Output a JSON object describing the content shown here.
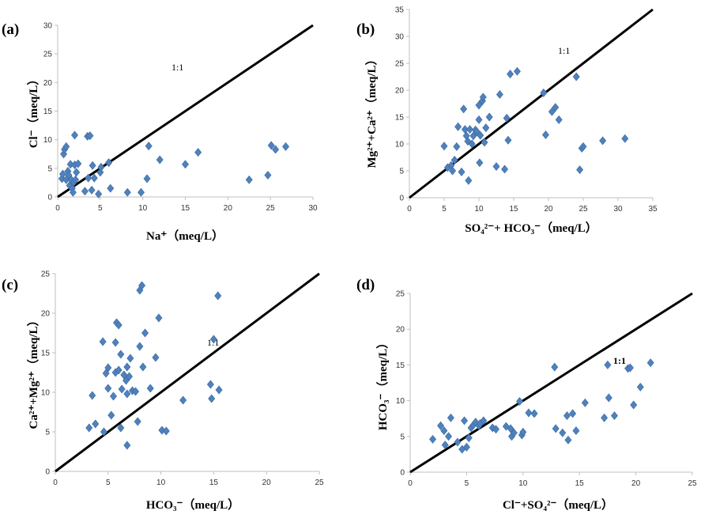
{
  "chart_data": [
    {
      "panel": "(a)",
      "type": "scatter",
      "xlabel": "Na⁺（meq/L）",
      "ylabel": "Cl⁻（meq/L）",
      "xlim": [
        0,
        30
      ],
      "ylim": [
        0,
        30
      ],
      "xticks": [
        0,
        5,
        10,
        15,
        20,
        25,
        30
      ],
      "yticks": [
        0,
        5,
        10,
        15,
        20,
        25,
        30
      ],
      "ratio_line_label": "1:1",
      "marker_color": "#4f81bd",
      "points": [
        [
          0.5,
          3.2
        ],
        [
          0.6,
          4
        ],
        [
          0.7,
          7.5
        ],
        [
          0.8,
          8.3
        ],
        [
          1,
          8.8
        ],
        [
          1,
          3
        ],
        [
          1.2,
          4.5
        ],
        [
          1.3,
          3.8
        ],
        [
          1.4,
          2
        ],
        [
          1.5,
          5.7
        ],
        [
          1.6,
          3
        ],
        [
          1.7,
          1.5
        ],
        [
          1.8,
          0.8
        ],
        [
          1.9,
          2.6
        ],
        [
          2,
          10.8
        ],
        [
          2,
          5.6
        ],
        [
          2.1,
          3
        ],
        [
          2.2,
          4.3
        ],
        [
          2.4,
          5.8
        ],
        [
          3.5,
          10.6
        ],
        [
          3.8,
          10.7
        ],
        [
          3.2,
          1
        ],
        [
          3.6,
          3.3
        ],
        [
          4,
          1.2
        ],
        [
          4.1,
          5.5
        ],
        [
          4.3,
          3.3
        ],
        [
          4.8,
          0.5
        ],
        [
          5,
          4.3
        ],
        [
          5.1,
          5.2
        ],
        [
          6,
          6
        ],
        [
          6.2,
          1.5
        ],
        [
          8.2,
          0.8
        ],
        [
          9.8,
          0.8
        ],
        [
          10.5,
          3.2
        ],
        [
          10.7,
          8.9
        ],
        [
          12,
          6.5
        ],
        [
          15,
          5.7
        ],
        [
          16.5,
          7.8
        ],
        [
          22.5,
          3
        ],
        [
          24.7,
          3.8
        ],
        [
          25.1,
          9
        ],
        [
          25.6,
          8.3
        ],
        [
          26.8,
          8.8
        ]
      ]
    },
    {
      "panel": "(b)",
      "type": "scatter",
      "xlabel": "SO₄²⁻+ HCO₃⁻（meq/L）",
      "ylabel": "Mg²⁺+Ca²⁺（meq/L）",
      "xlim": [
        0,
        35
      ],
      "ylim": [
        0,
        35
      ],
      "xticks": [
        0,
        5,
        10,
        15,
        20,
        25,
        30,
        35
      ],
      "yticks": [
        0,
        5,
        10,
        15,
        20,
        25,
        30,
        35
      ],
      "ratio_line_label": "1:1",
      "marker_color": "#4f81bd",
      "points": [
        [
          5,
          9.6
        ],
        [
          5.5,
          5.6
        ],
        [
          6,
          6
        ],
        [
          6.2,
          5
        ],
        [
          6.5,
          7
        ],
        [
          6.8,
          9.5
        ],
        [
          7,
          13.2
        ],
        [
          7.5,
          4.8
        ],
        [
          7.8,
          16.5
        ],
        [
          8,
          12.7
        ],
        [
          8.2,
          11.5
        ],
        [
          8.4,
          10.5
        ],
        [
          8.5,
          3.2
        ],
        [
          8.7,
          12.7
        ],
        [
          9,
          10
        ],
        [
          9.2,
          11.5
        ],
        [
          9.5,
          12.6
        ],
        [
          9.7,
          12.3
        ],
        [
          10,
          17.2
        ],
        [
          10,
          14.5
        ],
        [
          10.1,
          6.5
        ],
        [
          10.2,
          11.6
        ],
        [
          10.5,
          18
        ],
        [
          10.6,
          18.7
        ],
        [
          10.8,
          10.3
        ],
        [
          11,
          13
        ],
        [
          11.5,
          15
        ],
        [
          12.5,
          5.8
        ],
        [
          13,
          19.2
        ],
        [
          13.7,
          5.3
        ],
        [
          14,
          14.8
        ],
        [
          14.2,
          10.7
        ],
        [
          14.5,
          23
        ],
        [
          15.5,
          23.5
        ],
        [
          19.3,
          19.5
        ],
        [
          19.6,
          11.7
        ],
        [
          20.5,
          16
        ],
        [
          21,
          16.8
        ],
        [
          21.5,
          14.5
        ],
        [
          24,
          22.5
        ],
        [
          24.5,
          5.2
        ],
        [
          24.8,
          9.2
        ],
        [
          25,
          9.5
        ],
        [
          27.8,
          10.6
        ],
        [
          31,
          11
        ]
      ]
    },
    {
      "panel": "(c)",
      "type": "scatter",
      "xlabel": "HCO₃⁻（meq/L）",
      "ylabel": "Ca²⁺+Mg²⁺（meq/L）",
      "xlim": [
        0,
        25
      ],
      "ylim": [
        0,
        25
      ],
      "xticks": [
        0,
        5,
        10,
        15,
        20,
        25
      ],
      "yticks": [
        0,
        5,
        10,
        15,
        20,
        25
      ],
      "ratio_line_label": "1:1",
      "marker_color": "#4f81bd",
      "points": [
        [
          3.2,
          5.5
        ],
        [
          3.5,
          9.6
        ],
        [
          3.8,
          6
        ],
        [
          4.5,
          16.4
        ],
        [
          4.6,
          5
        ],
        [
          4.8,
          12.4
        ],
        [
          5,
          10.5
        ],
        [
          5,
          13.1
        ],
        [
          5.3,
          7.1
        ],
        [
          5.5,
          9.5
        ],
        [
          5.7,
          12.5
        ],
        [
          5.7,
          16.3
        ],
        [
          5.8,
          18.8
        ],
        [
          6,
          12.8
        ],
        [
          6,
          18.5
        ],
        [
          6.2,
          14.8
        ],
        [
          6.2,
          5.5
        ],
        [
          6.3,
          10.4
        ],
        [
          6.5,
          12.2
        ],
        [
          6.7,
          11.5
        ],
        [
          6.8,
          9.8
        ],
        [
          6.8,
          13.2
        ],
        [
          6.8,
          3.3
        ],
        [
          7,
          12
        ],
        [
          7.1,
          14.3
        ],
        [
          7.3,
          10.2
        ],
        [
          7.6,
          10.1
        ],
        [
          7.8,
          6.3
        ],
        [
          8,
          15.8
        ],
        [
          8,
          22.9
        ],
        [
          8.2,
          23.5
        ],
        [
          8.3,
          13.2
        ],
        [
          8.5,
          17.5
        ],
        [
          9,
          10.5
        ],
        [
          9.5,
          14.4
        ],
        [
          9.8,
          19.4
        ],
        [
          10.1,
          5.2
        ],
        [
          10.5,
          5.1
        ],
        [
          12.1,
          9
        ],
        [
          14.7,
          11
        ],
        [
          14.8,
          9.2
        ],
        [
          15,
          16.7
        ],
        [
          15.4,
          22.2
        ],
        [
          15.5,
          10.3
        ]
      ]
    },
    {
      "panel": "(d)",
      "type": "scatter",
      "xlabel": "Cl⁻+SO₄²⁻（meq/L）",
      "ylabel": "HCO₃⁻（meq/L）",
      "xlim": [
        0,
        25
      ],
      "ylim": [
        0,
        25
      ],
      "xticks": [
        0,
        5,
        10,
        15,
        20,
        25
      ],
      "yticks": [
        0,
        5,
        10,
        15,
        20,
        25
      ],
      "ratio_line_label": "1:1",
      "marker_color": "#4f81bd",
      "points": [
        [
          2,
          4.6
        ],
        [
          2.7,
          6.5
        ],
        [
          3,
          5.8
        ],
        [
          3.1,
          3.8
        ],
        [
          3.4,
          5
        ],
        [
          3.6,
          7.6
        ],
        [
          4.2,
          4.2
        ],
        [
          4.6,
          3.2
        ],
        [
          4.8,
          7.2
        ],
        [
          5,
          3.5
        ],
        [
          5.2,
          4.8
        ],
        [
          5.4,
          6.2
        ],
        [
          5.6,
          6.6
        ],
        [
          5.8,
          7
        ],
        [
          6.1,
          6.5
        ],
        [
          6.2,
          6.8
        ],
        [
          6.5,
          7.2
        ],
        [
          7.3,
          6.2
        ],
        [
          7.6,
          6
        ],
        [
          8.5,
          6.4
        ],
        [
          8.9,
          6.1
        ],
        [
          9,
          5
        ],
        [
          9.2,
          5.5
        ],
        [
          9.7,
          9.9
        ],
        [
          9.9,
          5.2
        ],
        [
          10,
          5.6
        ],
        [
          10.5,
          8.3
        ],
        [
          11,
          8.2
        ],
        [
          12.8,
          14.7
        ],
        [
          12.9,
          6.1
        ],
        [
          13.5,
          5.5
        ],
        [
          13.9,
          7.9
        ],
        [
          14,
          4.5
        ],
        [
          14.4,
          8.2
        ],
        [
          14.7,
          5.8
        ],
        [
          15.5,
          9.7
        ],
        [
          17.2,
          7.6
        ],
        [
          17.5,
          15
        ],
        [
          17.6,
          10.4
        ],
        [
          18.1,
          7.9
        ],
        [
          19.3,
          14.5
        ],
        [
          19.5,
          14.6
        ],
        [
          19.8,
          9.4
        ],
        [
          20.4,
          11.9
        ],
        [
          21.3,
          15.3
        ]
      ]
    }
  ]
}
